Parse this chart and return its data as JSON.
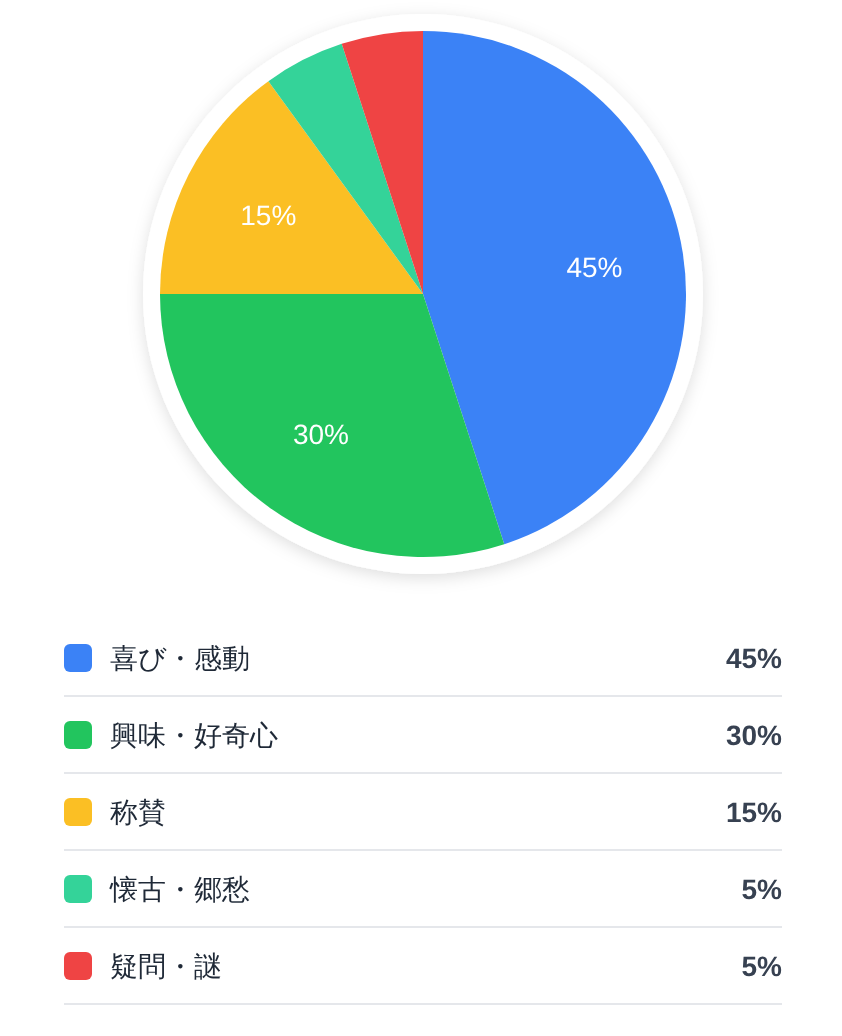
{
  "chart_data": {
    "type": "pie",
    "categories": [
      "喜び・感動",
      "興味・好奇心",
      "称賛",
      "懐古・郷愁",
      "疑問・謎"
    ],
    "values": [
      45,
      30,
      15,
      5,
      5
    ],
    "colors": [
      "#3b82f6",
      "#22c55e",
      "#fbbf24",
      "#34d399",
      "#ef4444"
    ],
    "value_labels": [
      "45%",
      "30%",
      "15%",
      "5%",
      "5%"
    ],
    "legend": "bottom"
  }
}
